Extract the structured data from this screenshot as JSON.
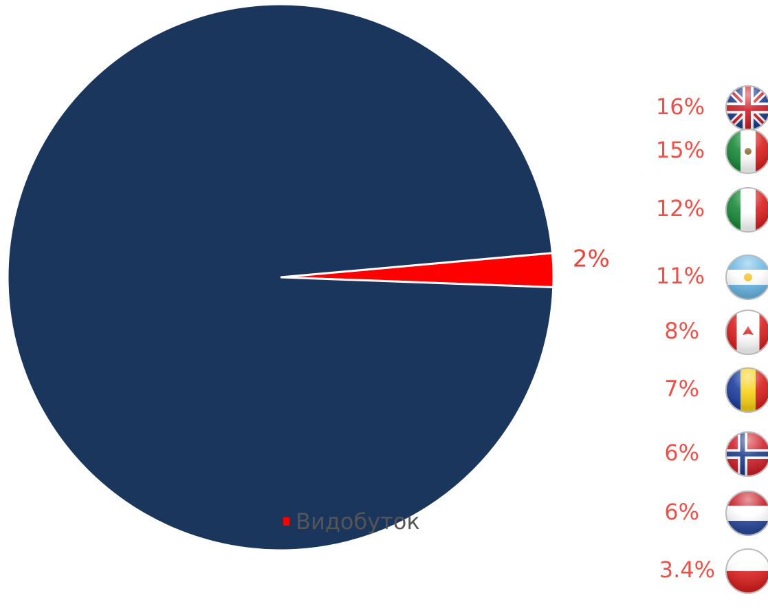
{
  "chart_data": {
    "type": "pie",
    "categories": [
      "Видобуток",
      null
    ],
    "values": [
      2,
      98
    ],
    "value_labels": [
      "2%",
      null
    ],
    "colors": [
      "#ff0000",
      "#1b365d"
    ],
    "legend": "bottom"
  },
  "country_shares": [
    "16%",
    "15%",
    "12%",
    "11%",
    "8%",
    "7%",
    "6%",
    "6%",
    "3.4%"
  ]
}
